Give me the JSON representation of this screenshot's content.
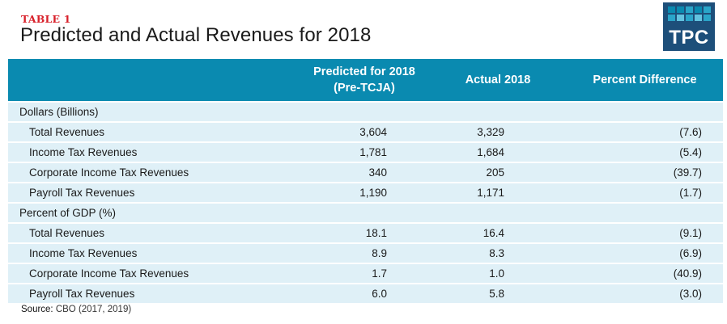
{
  "header": {
    "eyebrow": "TABLE 1",
    "title": "Predicted and Actual Revenues for 2018",
    "logo": {
      "text": "TPC",
      "icon": "tpc-logo-icon",
      "colors": {
        "background": "#1d4f7a",
        "cells": [
          "#0a8ab0",
          "#2aa5c9",
          "#63c2df"
        ]
      }
    }
  },
  "table": {
    "columns": [
      "",
      "Predicted for 2018\n(Pre-TCJA)",
      "Actual 2018",
      "Percent Difference"
    ],
    "column_lines": [
      [
        "Predicted for 2018",
        "(Pre-TCJA)"
      ],
      [
        "Actual 2018"
      ],
      [
        "Percent Difference"
      ]
    ],
    "colors": {
      "header_bg": "#0a8ab0",
      "row_bg": "#dff0f7"
    },
    "sections": [
      {
        "title": "Dollars (Billions)",
        "rows": [
          {
            "label": "Total Revenues",
            "predicted": "3,604",
            "actual": "3,329",
            "pct_diff": "(7.6)"
          },
          {
            "label": "Income Tax Revenues",
            "predicted": "1,781",
            "actual": "1,684",
            "pct_diff": "(5.4)"
          },
          {
            "label": "Corporate Income Tax Revenues",
            "predicted": "340",
            "actual": "205",
            "pct_diff": "(39.7)"
          },
          {
            "label": "Payroll Tax Revenues",
            "predicted": "1,190",
            "actual": "1,171",
            "pct_diff": "(1.7)"
          }
        ]
      },
      {
        "title": "Percent of GDP (%)",
        "rows": [
          {
            "label": "Total Revenues",
            "predicted": "18.1",
            "actual": "16.4",
            "pct_diff": "(9.1)"
          },
          {
            "label": "Income Tax Revenues",
            "predicted": "8.9",
            "actual": "8.3",
            "pct_diff": "(6.9)"
          },
          {
            "label": "Corporate Income Tax Revenues",
            "predicted": "1.7",
            "actual": "1.0",
            "pct_diff": "(40.9)"
          },
          {
            "label": "Payroll Tax Revenues",
            "predicted": "6.0",
            "actual": "5.8",
            "pct_diff": "(3.0)"
          }
        ]
      }
    ]
  },
  "footer": {
    "source_label": "Source:",
    "source_text": " CBO (2017, 2019)"
  }
}
